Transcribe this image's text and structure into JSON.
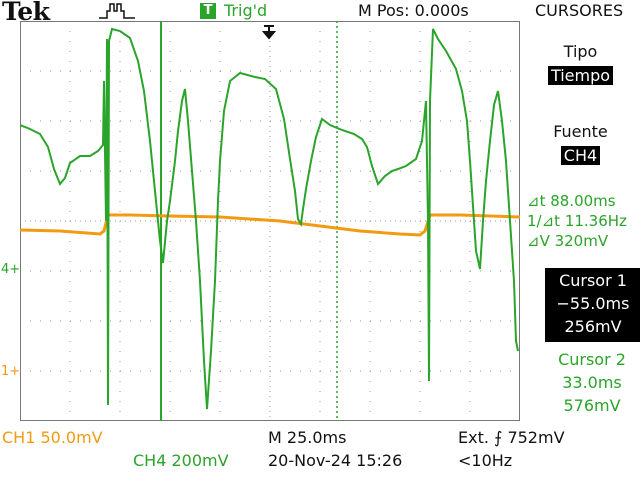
{
  "header": {
    "brand": "Tek",
    "trigger_badge": "T",
    "trigger_status": "Trig'd",
    "m_pos": "M Pos: 0.000s",
    "menu_title": "CURSORES"
  },
  "menu": {
    "tipo_label": "Tipo",
    "tipo_value": "Tiempo",
    "fuente_label": "Fuente",
    "fuente_value": "CH4",
    "delta_t": "⊿t 88.00ms",
    "inv_delta_t": "1/⊿t 11.36Hz",
    "delta_v": "⊿V 320mV",
    "cursor1": {
      "title": "Cursor 1",
      "time": "−55.0ms",
      "volt": "256mV"
    },
    "cursor2": {
      "title": "Cursor 2",
      "time": "33.0ms",
      "volt": "576mV"
    }
  },
  "markers": {
    "ch4_marker": "4+",
    "ch1_marker": "1+"
  },
  "footer": {
    "ch1": "CH1  50.0mV",
    "ch4": "CH4  200mV",
    "timebase": "M 25.0ms",
    "date": "20-Nov-24 15:26",
    "trigger": "Ext. ⨍ 752mV",
    "freq": "<10Hz"
  },
  "colors": {
    "ch4": "#2aa42a",
    "ch1": "#f29a12",
    "grid": "#9a9a9a"
  }
}
